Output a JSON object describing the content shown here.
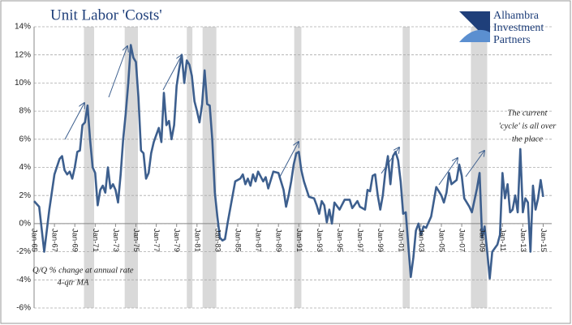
{
  "chart_data": {
    "type": "line",
    "title": "Unit Labor 'Costs'",
    "logo": [
      "Alhambra",
      "Investment",
      "Partners"
    ],
    "annotations": [
      "Q/Q % change at annual rate",
      "4-qtr MA"
    ],
    "note": [
      "The current",
      "'cycle' is all over",
      "the place"
    ],
    "xlim": [
      1965,
      2015.2
    ],
    "xticks": [
      {
        "value": 1965,
        "label": "Jan-65"
      },
      {
        "value": 1967,
        "label": "Jan-67"
      },
      {
        "value": 1969,
        "label": "Jan-69"
      },
      {
        "value": 1971,
        "label": "Jan-71"
      },
      {
        "value": 1973,
        "label": "Jan-73"
      },
      {
        "value": 1975,
        "label": "Jan-75"
      },
      {
        "value": 1977,
        "label": "Jan-77"
      },
      {
        "value": 1979,
        "label": "Jan-79"
      },
      {
        "value": 1981,
        "label": "Jan-81"
      },
      {
        "value": 1983,
        "label": "Jan-83"
      },
      {
        "value": 1985,
        "label": "Jan-85"
      },
      {
        "value": 1987,
        "label": "Jan-87"
      },
      {
        "value": 1989,
        "label": "Jan-89"
      },
      {
        "value": 1991,
        "label": "Jan-91"
      },
      {
        "value": 1993,
        "label": "Jan-93"
      },
      {
        "value": 1995,
        "label": "Jan-95"
      },
      {
        "value": 1997,
        "label": "Jan-97"
      },
      {
        "value": 1999,
        "label": "Jan-99"
      },
      {
        "value": 2001,
        "label": "Jan-01"
      },
      {
        "value": 2003,
        "label": "Jan-03"
      },
      {
        "value": 2005,
        "label": "Jan-05"
      },
      {
        "value": 2007,
        "label": "Jan-07"
      },
      {
        "value": 2009,
        "label": "Jan-09"
      },
      {
        "value": 2011,
        "label": "Jan-11"
      },
      {
        "value": 2013,
        "label": "Jan-13"
      },
      {
        "value": 2015,
        "label": "Jan-15"
      }
    ],
    "ylim": [
      -6,
      14
    ],
    "yticks": [
      {
        "value": -6,
        "label": "-6%"
      },
      {
        "value": -4,
        "label": "-4%"
      },
      {
        "value": -2,
        "label": "-2%"
      },
      {
        "value": 0,
        "label": "0%"
      },
      {
        "value": 2,
        "label": "2%"
      },
      {
        "value": 4,
        "label": "4%"
      },
      {
        "value": 6,
        "label": "6%"
      },
      {
        "value": 8,
        "label": "8%"
      },
      {
        "value": 10,
        "label": "10%"
      },
      {
        "value": 12,
        "label": "12%"
      },
      {
        "value": 14,
        "label": "14%"
      }
    ],
    "grid": true,
    "color": "#3d5f8e",
    "recession_color": "#d9d9d9",
    "recessions": [
      [
        1969.9,
        1970.9
      ],
      [
        1973.9,
        1975.2
      ],
      [
        1980,
        1980.55
      ],
      [
        1981.55,
        1982.9
      ],
      [
        1990.55,
        1991.25
      ],
      [
        2001.2,
        2001.9
      ],
      [
        2007.9,
        2009.5
      ]
    ],
    "x": [
      1965,
      1965.5,
      1966,
      1966.5,
      1967,
      1967.5,
      1967.75,
      1968,
      1968.25,
      1968.5,
      1968.75,
      1969,
      1969.25,
      1969.5,
      1969.75,
      1970,
      1970.25,
      1970.5,
      1970.75,
      1971,
      1971.25,
      1971.5,
      1971.75,
      1972,
      1972.25,
      1972.5,
      1972.75,
      1973,
      1973.25,
      1973.5,
      1973.75,
      1974,
      1974.25,
      1974.5,
      1974.75,
      1975,
      1975.25,
      1975.5,
      1975.75,
      1976,
      1976.25,
      1976.5,
      1976.75,
      1977,
      1977.25,
      1977.5,
      1977.75,
      1978,
      1978.25,
      1978.5,
      1978.75,
      1979,
      1979.25,
      1979.5,
      1979.75,
      1980,
      1980.25,
      1980.5,
      1980.75,
      1981,
      1981.25,
      1981.5,
      1981.75,
      1982,
      1982.25,
      1982.5,
      1982.75,
      1983,
      1983.25,
      1983.5,
      1983.75,
      1984,
      1984.5,
      1984.75,
      1985.25,
      1985.5,
      1985.75,
      1986,
      1986.25,
      1986.5,
      1986.75,
      1987,
      1987.5,
      1987.75,
      1988,
      1988.5,
      1989,
      1989.5,
      1989.75,
      1990,
      1990.25,
      1990.5,
      1990.75,
      1991,
      1991.25,
      1991.5,
      1992,
      1992.5,
      1992.75,
      1993,
      1993.25,
      1993.5,
      1993.75,
      1994,
      1994.25,
      1994.5,
      1995,
      1995.5,
      1996,
      1996.25,
      1996.75,
      1997,
      1997.5,
      1997.75,
      1998,
      1998.25,
      1998.5,
      1998.75,
      1999,
      1999.25,
      1999.5,
      1999.75,
      2000,
      2000.25,
      2000.5,
      2000.75,
      2001,
      2001.25,
      2001.5,
      2001.75,
      2002,
      2002.25,
      2002.5,
      2002.75,
      2003,
      2003.25,
      2003.5,
      2004,
      2004.5,
      2005,
      2005.25,
      2005.5,
      2005.75,
      2006,
      2006.5,
      2006.75,
      2007,
      2007.25,
      2007.75,
      2008,
      2008.5,
      2008.75,
      2009,
      2009.25,
      2009.5,
      2009.75,
      2010,
      2010.5,
      2010.75,
      2011,
      2011.25,
      2011.5,
      2011.75,
      2012,
      2012.25,
      2012.5,
      2012.75,
      2013,
      2013.25,
      2013.5,
      2013.75,
      2014,
      2014.25,
      2014.5,
      2014.75,
      2015
    ],
    "values": [
      1.6,
      1.2,
      -2.0,
      1.0,
      3.5,
      4.6,
      4.8,
      3.8,
      3.5,
      3.7,
      3.2,
      4.0,
      5.1,
      5.2,
      7.0,
      7.2,
      8.4,
      6.0,
      4.0,
      3.6,
      1.3,
      2.4,
      2.7,
      2.2,
      4.0,
      2.5,
      2.8,
      2.4,
      1.5,
      3.5,
      6.0,
      7.8,
      10.0,
      12.7,
      11.8,
      11.5,
      9.0,
      5.2,
      5.0,
      3.2,
      3.6,
      5.0,
      5.8,
      6.3,
      6.8,
      5.8,
      9.3,
      7.0,
      7.3,
      6.0,
      7.0,
      9.8,
      11.0,
      12.0,
      10.0,
      11.6,
      11.3,
      10.5,
      8.7,
      8.0,
      7.2,
      8.5,
      10.9,
      8.5,
      8.4,
      6.0,
      2.2,
      0.5,
      -1.0,
      -1.2,
      -1.1,
      0.0,
      2.0,
      3.0,
      3.2,
      3.5,
      2.8,
      3.2,
      2.7,
      3.5,
      3.0,
      3.7,
      3.0,
      3.3,
      2.5,
      3.7,
      3.6,
      2.4,
      1.2,
      2.0,
      3.0,
      4.2,
      5.0,
      5.1,
      3.8,
      3.0,
      1.9,
      1.8,
      1.3,
      0.7,
      1.6,
      1.3,
      0.1,
      1.0,
      0.0,
      1.5,
      1.0,
      1.7,
      1.7,
      1.1,
      1.6,
      1.2,
      1.0,
      2.4,
      2.3,
      3.4,
      3.5,
      2.0,
      1.0,
      2.0,
      3.7,
      4.8,
      2.8,
      4.8,
      5.1,
      4.5,
      3.0,
      0.7,
      0.8,
      -1.5,
      -3.8,
      -2.4,
      -0.5,
      0.0,
      -0.8,
      -0.2,
      -0.3,
      0.5,
      2.6,
      2.0,
      1.5,
      2.2,
      3.6,
      2.8,
      3.1,
      4.2,
      3.4,
      1.8,
      1.2,
      0.8,
      2.5,
      3.6,
      -1.0,
      -0.2,
      -2.0,
      -3.9,
      -2.0,
      -1.5,
      -0.8,
      3.6,
      1.8,
      2.8,
      0.8,
      1.0,
      2.0,
      0.8,
      5.3,
      0.8,
      1.8,
      1.5,
      -2.0,
      2.7,
      1.0,
      1.8,
      3.1,
      1.9
    ]
  }
}
